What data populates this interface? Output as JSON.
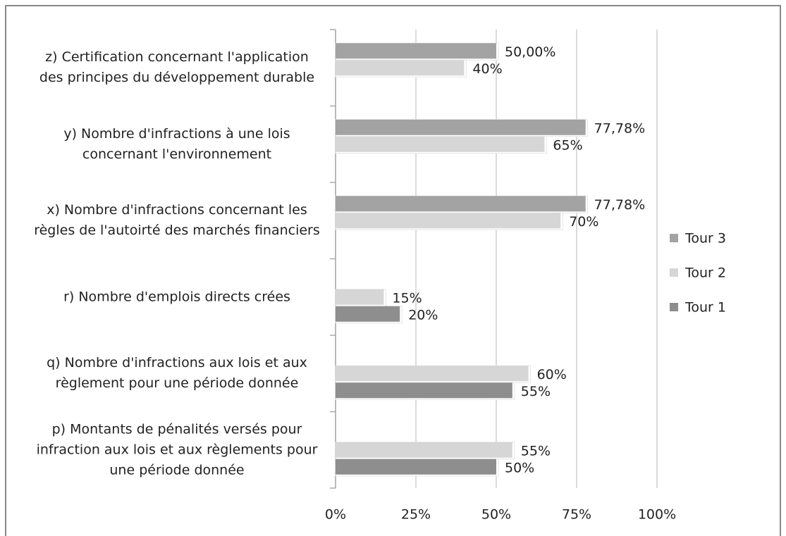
{
  "chart_data": {
    "type": "bar",
    "orientation": "horizontal",
    "categories": [
      "z) Certification concernant l'application des principes du développement durable",
      "y) Nombre d'infractions à une lois concernant l'environnement",
      "x) Nombre d'infractions concernant les règles de l'autoirté des marchés financiers",
      "r) Nombre d'emplois directs crées",
      "q) Nombre d'infractions aux lois et aux règlement pour une période donnée",
      "p) Montants de pénalités versés pour infraction aux lois et aux règlements pour une période donnée"
    ],
    "series": [
      {
        "name": "Tour 3",
        "color": "#a3a3a3",
        "values": [
          50,
          77.78,
          77.78,
          null,
          null,
          null
        ],
        "value_labels": [
          "50,00%",
          "77,78%",
          "77,78%",
          null,
          null,
          null
        ]
      },
      {
        "name": "Tour 2",
        "color": "#d6d6d6",
        "values": [
          40,
          65,
          70,
          15,
          60,
          55
        ],
        "value_labels": [
          "40%",
          "65%",
          "70%",
          "15%",
          "60%",
          "55%"
        ]
      },
      {
        "name": "Tour 1",
        "color": "#8e8e8e",
        "values": [
          null,
          null,
          null,
          20,
          55,
          50
        ],
        "value_labels": [
          null,
          null,
          null,
          "20%",
          "55%",
          "50%"
        ]
      }
    ],
    "xlim": [
      0,
      100
    ],
    "xticks": [
      {
        "value": 0,
        "label": "0%"
      },
      {
        "value": 25,
        "label": "25%"
      },
      {
        "value": 50,
        "label": "50%"
      },
      {
        "value": 75,
        "label": "75%"
      },
      {
        "value": 100,
        "label": "100%"
      }
    ],
    "grid": true,
    "legend": "right"
  }
}
